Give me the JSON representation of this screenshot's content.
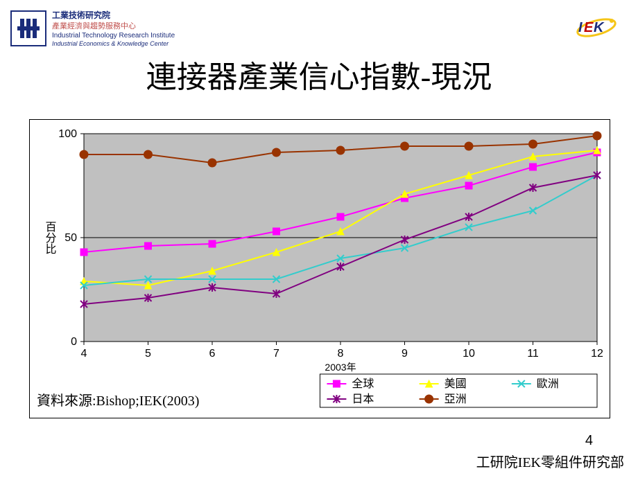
{
  "header": {
    "org_line1": "工業技術研究院",
    "org_line2": "產業經濟與趨勢服務中心",
    "org_line3": "Industrial Technology Research Institute",
    "org_line4": "Industrial Economics & Knowledge Center"
  },
  "title": "連接器產業信心指數-現況",
  "chart": {
    "type": "line",
    "plot_bg": "#c0c0c0",
    "outer_bg": "#ffffff",
    "grid_color": "#000000",
    "axis_color": "#000000",
    "tick_label_fontsize": 16,
    "xlabel": "2003年",
    "ylabel": "百分比",
    "ylabel_fontsize": 16,
    "xlim": [
      4,
      12
    ],
    "ylim": [
      0,
      100
    ],
    "yticks": [
      0,
      50,
      100
    ],
    "xticks": [
      4,
      5,
      6,
      7,
      8,
      9,
      10,
      11,
      12
    ],
    "line_width": 2,
    "series": [
      {
        "name": "全球",
        "color": "#ff00ff",
        "marker": "square",
        "data": [
          43,
          46,
          47,
          53,
          60,
          69,
          75,
          84,
          91
        ]
      },
      {
        "name": "美國",
        "color": "#ffff00",
        "marker": "triangle",
        "data": [
          29,
          27,
          34,
          43,
          53,
          71,
          80,
          89,
          92
        ]
      },
      {
        "name": "歐洲",
        "color": "#33cccc",
        "marker": "x",
        "data": [
          27,
          30,
          30,
          30,
          40,
          45,
          55,
          63,
          80
        ]
      },
      {
        "name": "日本",
        "color": "#800080",
        "marker": "star",
        "data": [
          18,
          21,
          26,
          23,
          36,
          49,
          60,
          74,
          80
        ]
      },
      {
        "name": "亞洲",
        "color": "#993300",
        "marker": "circle",
        "data": [
          90,
          90,
          86,
          91,
          92,
          94,
          94,
          95,
          99
        ]
      }
    ],
    "legend": {
      "border_color": "#000000",
      "bg": "#ffffff",
      "fontsize": 16
    }
  },
  "source": "資料來源:Bishop;IEK(2003)",
  "page_number": "4",
  "footer": "工研院IEK零組件研究部"
}
